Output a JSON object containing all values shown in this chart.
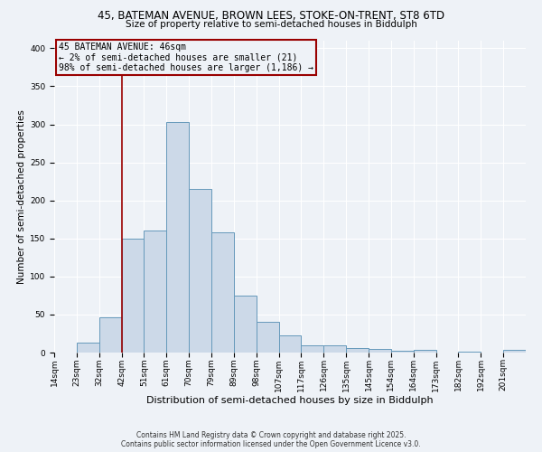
{
  "title_line1": "45, BATEMAN AVENUE, BROWN LEES, STOKE-ON-TRENT, ST8 6TD",
  "title_line2": "Size of property relative to semi-detached houses in Biddulph",
  "xlabel": "Distribution of semi-detached houses by size in Biddulph",
  "ylabel": "Number of semi-detached properties",
  "bin_labels": [
    "14sqm",
    "23sqm",
    "32sqm",
    "42sqm",
    "51sqm",
    "61sqm",
    "70sqm",
    "79sqm",
    "89sqm",
    "98sqm",
    "107sqm",
    "117sqm",
    "126sqm",
    "135sqm",
    "145sqm",
    "154sqm",
    "164sqm",
    "173sqm",
    "182sqm",
    "192sqm",
    "201sqm"
  ],
  "bar_values": [
    0,
    13,
    46,
    150,
    160,
    303,
    215,
    158,
    75,
    40,
    22,
    9,
    10,
    6,
    5,
    2,
    4,
    0,
    1,
    0,
    3
  ],
  "bar_color": "#ccd9e8",
  "bar_edge_color": "#6699bb",
  "vline_x": 3.0,
  "vline_color": "#990000",
  "annotation_title": "45 BATEMAN AVENUE: 46sqm",
  "annotation_line1": "← 2% of semi-detached houses are smaller (21)",
  "annotation_line2": "98% of semi-detached houses are larger (1,186) →",
  "annotation_box_color": "#990000",
  "ylim": [
    0,
    410
  ],
  "yticks": [
    0,
    50,
    100,
    150,
    200,
    250,
    300,
    350,
    400
  ],
  "footer_line1": "Contains HM Land Registry data © Crown copyright and database right 2025.",
  "footer_line2": "Contains public sector information licensed under the Open Government Licence v3.0.",
  "bg_color": "#eef2f7",
  "title1_fontsize": 8.5,
  "title2_fontsize": 7.5,
  "xlabel_fontsize": 8,
  "ylabel_fontsize": 7.5,
  "tick_fontsize": 6.5,
  "footer_fontsize": 5.5,
  "ann_fontsize": 7
}
